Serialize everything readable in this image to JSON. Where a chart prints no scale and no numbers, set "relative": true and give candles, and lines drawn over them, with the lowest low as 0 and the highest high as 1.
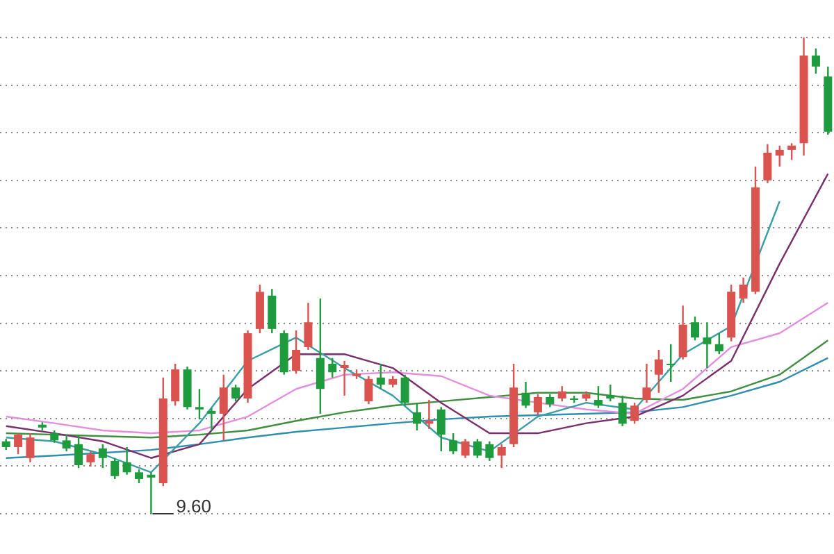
{
  "chart_data": {
    "type": "candlestick",
    "relative": true,
    "grid": "y",
    "legend": false,
    "categories": [
      null,
      null,
      null,
      null,
      null,
      null,
      null,
      null,
      null,
      null,
      null,
      null,
      null,
      null,
      null,
      null,
      null,
      null,
      null,
      null,
      null,
      null,
      null,
      null,
      null,
      null,
      null,
      null,
      null,
      null,
      null,
      null,
      null,
      null,
      null,
      null,
      null,
      null,
      null,
      null,
      null,
      null,
      null,
      null,
      null,
      null,
      null,
      null,
      null,
      null,
      null,
      null,
      null,
      null,
      null,
      null,
      null,
      null,
      null,
      null,
      null,
      null,
      null,
      null,
      null,
      null,
      null,
      null,
      null
    ],
    "ohlc": [
      [
        0.152,
        0.157,
        0.134,
        0.14
      ],
      [
        0.14,
        0.169,
        0.125,
        0.166
      ],
      [
        0.117,
        0.169,
        0.108,
        0.16
      ],
      [
        0.187,
        0.192,
        0.175,
        0.181
      ],
      [
        0.169,
        0.175,
        0.149,
        0.154
      ],
      [
        0.154,
        0.166,
        0.131,
        0.137
      ],
      [
        0.146,
        0.166,
        0.096,
        0.102
      ],
      [
        0.108,
        0.131,
        0.099,
        0.125
      ],
      [
        0.137,
        0.146,
        0.096,
        0.117
      ],
      [
        0.111,
        0.117,
        0.073,
        0.079
      ],
      [
        0.108,
        0.14,
        0.082,
        0.087
      ],
      [
        0.087,
        0.093,
        0.064,
        0.073
      ],
      [
        0.082,
        0.087,
        0,
        0.076
      ],
      [
        0.064,
        0.286,
        0.058,
        0.242
      ],
      [
        0.236,
        0.315,
        0.227,
        0.303
      ],
      [
        0.303,
        0.309,
        0.219,
        0.224
      ],
      [
        0.224,
        0.262,
        0.198,
        0.219
      ],
      [
        0.216,
        0.222,
        0.175,
        0.21
      ],
      [
        0.21,
        0.292,
        0.154,
        0.265
      ],
      [
        0.265,
        0.271,
        0.236,
        0.242
      ],
      [
        0.242,
        0.385,
        0.233,
        0.379
      ],
      [
        0.388,
        0.481,
        0.379,
        0.466
      ],
      [
        0.458,
        0.472,
        0.379,
        0.388
      ],
      [
        0.379,
        0.385,
        0.292,
        0.297
      ],
      [
        0.3,
        0.385,
        0.294,
        0.344
      ],
      [
        0.35,
        0.443,
        0.344,
        0.402
      ],
      [
        0.327,
        0.452,
        0.21,
        0.262
      ],
      [
        0.315,
        0.327,
        0.286,
        0.297
      ],
      [
        0.306,
        0.321,
        0.248,
        0.312
      ],
      [
        0.289,
        0.303,
        0.283,
        0.294
      ],
      [
        0.236,
        0.289,
        0.23,
        0.283
      ],
      [
        0.286,
        0.315,
        0.262,
        0.271
      ],
      [
        0.271,
        0.289,
        0.265,
        0.283
      ],
      [
        0.286,
        0.292,
        0.227,
        0.233
      ],
      [
        0.213,
        0.233,
        0.175,
        0.189
      ],
      [
        0.189,
        0.239,
        0.178,
        0.195
      ],
      [
        0.219,
        0.224,
        0.131,
        0.166
      ],
      [
        0.154,
        0.169,
        0.125,
        0.131
      ],
      [
        0.122,
        0.157,
        0.117,
        0.152
      ],
      [
        0.152,
        0.157,
        0.117,
        0.122
      ],
      [
        0.146,
        0.152,
        0.111,
        0.117
      ],
      [
        0.122,
        0.146,
        0.096,
        0.14
      ],
      [
        0.146,
        0.315,
        0.14,
        0.265
      ],
      [
        0.254,
        0.277,
        0.222,
        0.227
      ],
      [
        0.213,
        0.251,
        0.207,
        0.245
      ],
      [
        0.245,
        0.251,
        0.224,
        0.23
      ],
      [
        0.242,
        0.268,
        0.236,
        0.257
      ],
      [
        0.242,
        0.248,
        0.233,
        0.239
      ],
      [
        0.242,
        0.257,
        0.236,
        0.251
      ],
      [
        0.239,
        0.268,
        0.222,
        0.227
      ],
      [
        0.248,
        0.271,
        0.236,
        0.242
      ],
      [
        0.233,
        0.248,
        0.184,
        0.189
      ],
      [
        0.195,
        0.233,
        0.189,
        0.227
      ],
      [
        0.239,
        0.315,
        0.233,
        0.265
      ],
      [
        0.292,
        0.344,
        0.254,
        0.324
      ],
      [
        0.315,
        0.356,
        0.277,
        0.312
      ],
      [
        0.329,
        0.437,
        0.324,
        0.397
      ],
      [
        0.402,
        0.414,
        0.364,
        0.37
      ],
      [
        0.37,
        0.402,
        0.306,
        0.356
      ],
      [
        0.356,
        0.379,
        0.335,
        0.341
      ],
      [
        0.37,
        0.481,
        0.362,
        0.466
      ],
      [
        0.452,
        0.496,
        0.443,
        0.481
      ],
      [
        0.466,
        0.729,
        0.461,
        0.685
      ],
      [
        0.7,
        0.776,
        0.694,
        0.758
      ],
      [
        0.752,
        0.773,
        0.729,
        0.764
      ],
      [
        0.764,
        0.778,
        0.743,
        0.773
      ],
      [
        0.778,
        1,
        0.752,
        0.962
      ],
      [
        0.962,
        0.977,
        0.924,
        0.939
      ],
      [
        0.918,
        0.939,
        0.796,
        0.802
      ]
    ],
    "series": [
      {
        "type": "line",
        "color": "#3a9fa6",
        "values": [
          0.16,
          null,
          null,
          null,
          0.152,
          null,
          null,
          null,
          0.125,
          null,
          null,
          null,
          0.087,
          null,
          null,
          null,
          0.19,
          null,
          null,
          null,
          0.321,
          null,
          null,
          null,
          0.37,
          null,
          null,
          null,
          0.306,
          null,
          null,
          null,
          0.248,
          null,
          null,
          null,
          0.16,
          null,
          null,
          null,
          0.131,
          null,
          null,
          null,
          0.204,
          null,
          null,
          null,
          0.233,
          null,
          null,
          null,
          0.219,
          null,
          null,
          null,
          0.335,
          null,
          null,
          null,
          0.394,
          null,
          null,
          null,
          0.656,
          null,
          null,
          null,
          null
        ]
      },
      {
        "type": "line",
        "color": "#7a2e6e",
        "values": [
          0.184,
          null,
          null,
          null,
          0.169,
          null,
          null,
          null,
          0.152,
          null,
          null,
          null,
          0.117,
          null,
          null,
          null,
          0.146,
          null,
          null,
          null,
          0.262,
          null,
          null,
          null,
          0.335,
          null,
          null,
          null,
          0.335,
          null,
          null,
          null,
          0.306,
          null,
          null,
          null,
          0.233,
          null,
          null,
          null,
          0.169,
          null,
          null,
          null,
          0.169,
          null,
          null,
          null,
          0.19,
          null,
          null,
          null,
          0.204,
          null,
          null,
          null,
          0.248,
          null,
          null,
          null,
          0.321,
          null,
          null,
          null,
          0.525,
          null,
          null,
          null,
          0.714
        ]
      },
      {
        "type": "line",
        "color": "#e48ee0",
        "values": [
          0.204,
          null,
          null,
          null,
          0.19,
          null,
          null,
          null,
          0.175,
          null,
          null,
          null,
          0.169,
          null,
          null,
          null,
          0.175,
          null,
          null,
          null,
          0.204,
          null,
          null,
          null,
          0.262,
          null,
          null,
          null,
          0.292,
          null,
          null,
          null,
          0.297,
          null,
          null,
          null,
          0.289,
          null,
          null,
          null,
          0.248,
          null,
          null,
          null,
          0.233,
          null,
          null,
          null,
          0.219,
          null,
          null,
          null,
          0.21,
          null,
          null,
          null,
          0.262,
          null,
          null,
          null,
          0.35,
          null,
          null,
          null,
          0.379,
          null,
          null,
          null,
          0.443
        ]
      },
      {
        "type": "line",
        "color": "#3f8f3f",
        "values": [
          0.169,
          null,
          null,
          null,
          0.166,
          null,
          null,
          null,
          0.163,
          null,
          null,
          null,
          0.16,
          null,
          null,
          null,
          0.166,
          null,
          null,
          null,
          0.175,
          null,
          null,
          null,
          0.195,
          null,
          null,
          null,
          0.213,
          null,
          null,
          null,
          0.227,
          null,
          null,
          null,
          0.236,
          null,
          null,
          null,
          0.245,
          null,
          null,
          null,
          0.254,
          null,
          null,
          null,
          0.254,
          null,
          null,
          null,
          0.242,
          null,
          null,
          null,
          0.239,
          null,
          null,
          null,
          0.257,
          null,
          null,
          null,
          0.292,
          null,
          null,
          null,
          0.364
        ]
      },
      {
        "type": "line",
        "color": "#2f8fb0",
        "values": [
          0.117,
          null,
          null,
          null,
          0.122,
          null,
          null,
          null,
          0.128,
          null,
          null,
          null,
          0.134,
          null,
          null,
          null,
          0.146,
          null,
          null,
          null,
          0.16,
          null,
          null,
          null,
          0.172,
          null,
          null,
          null,
          0.181,
          null,
          null,
          null,
          0.19,
          null,
          null,
          null,
          0.198,
          null,
          null,
          null,
          0.204,
          null,
          null,
          null,
          0.207,
          null,
          null,
          null,
          0.21,
          null,
          null,
          null,
          0.213,
          null,
          null,
          null,
          0.224,
          null,
          null,
          null,
          0.248,
          null,
          null,
          null,
          0.277,
          null,
          null,
          null,
          0.327
        ]
      }
    ],
    "annotations": [
      "9.60"
    ]
  }
}
